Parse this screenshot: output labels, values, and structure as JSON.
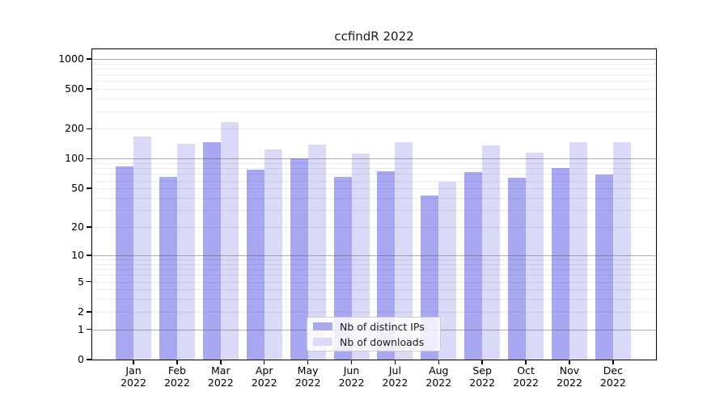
{
  "title": "ccfindR 2022",
  "legend": {
    "items": [
      {
        "label": "Nb of distinct IPs"
      },
      {
        "label": "Nb of downloads"
      }
    ]
  },
  "colors": {
    "bar_distinct_ips": "#a8a8f2",
    "bar_downloads": "#d9d9f8",
    "grid_major": "#a6a6a6",
    "grid_minor": "#ececec",
    "axis": "#000000",
    "background": "#ffffff"
  },
  "chart_data": {
    "type": "bar",
    "title": "ccfindR 2022",
    "categories": [
      "Jan 2022",
      "Feb 2022",
      "Mar 2022",
      "Apr 2022",
      "May 2022",
      "Jun 2022",
      "Jul 2022",
      "Aug 2022",
      "Sep 2022",
      "Oct 2022",
      "Nov 2022",
      "Dec 2022"
    ],
    "series": [
      {
        "name": "Nb of distinct IPs",
        "color": "#a8a8f2",
        "values": [
          83,
          66,
          148,
          78,
          100,
          66,
          74,
          42,
          73,
          64,
          81,
          69
        ]
      },
      {
        "name": "Nb of downloads",
        "color": "#d9d9f8",
        "values": [
          166,
          142,
          234,
          125,
          138,
          112,
          147,
          59,
          135,
          116,
          147,
          147
        ]
      }
    ],
    "xlabel": "",
    "ylabel": "",
    "yscale": "log10(1+x)",
    "y_ticks": [
      0,
      1,
      2,
      5,
      10,
      20,
      50,
      100,
      200,
      500,
      1000
    ],
    "ylim": [
      0,
      1250
    ],
    "grid": true,
    "legend_position": "lower center"
  }
}
